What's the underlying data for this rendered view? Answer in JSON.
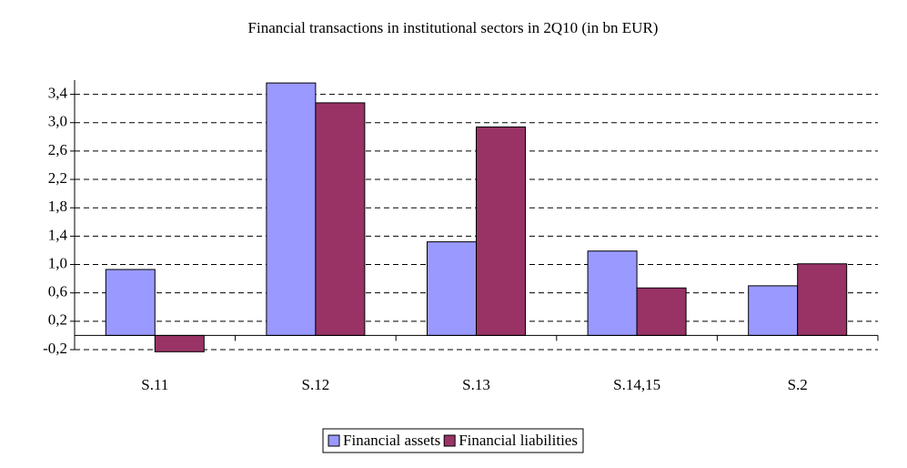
{
  "chart_data": {
    "type": "bar",
    "title": "Financial transactions in institutional sectors in 2Q10 (in bn EUR)",
    "categories": [
      "S.11",
      "S.12",
      "S.13",
      "S.14,15",
      "S.2"
    ],
    "series": [
      {
        "name": "Financial assets",
        "color": "#9999ff",
        "values": [
          0.93,
          3.56,
          1.32,
          1.19,
          0.7
        ]
      },
      {
        "name": "Financial liabilities",
        "color": "#993366",
        "values": [
          -0.23,
          3.28,
          2.94,
          0.67,
          1.01
        ]
      }
    ],
    "ylim": [
      -0.2,
      3.6
    ],
    "yticks": [
      {
        "value": -0.2,
        "label": "-0,2"
      },
      {
        "value": 0.2,
        "label": "0,2"
      },
      {
        "value": 0.6,
        "label": "0,6"
      },
      {
        "value": 1.0,
        "label": "1,0"
      },
      {
        "value": 1.4,
        "label": "1,4"
      },
      {
        "value": 1.8,
        "label": "1,8"
      },
      {
        "value": 2.2,
        "label": "2,2"
      },
      {
        "value": 2.6,
        "label": "2,6"
      },
      {
        "value": 3.0,
        "label": "3,0"
      },
      {
        "value": 3.4,
        "label": "3,4"
      }
    ],
    "grid": true,
    "legend": "bottom"
  }
}
